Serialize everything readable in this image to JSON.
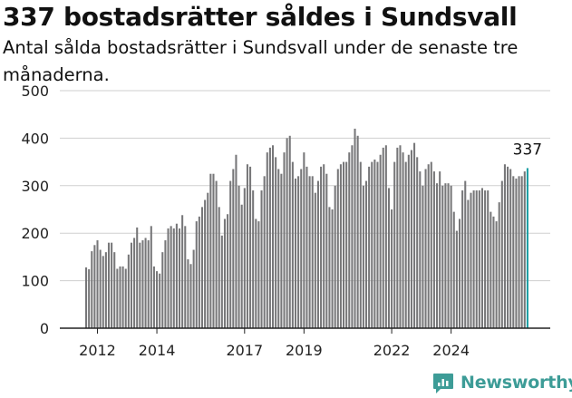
{
  "title": "337 bostadsrätter såldes i Sundsvall",
  "subtitle": "Antal sålda bostadsrätter i Sundsvall under de senaste tre månaderna.",
  "brand": {
    "name": "Newsworthy",
    "color": "#3d9c97",
    "icon": "newsworthy-logo-icon"
  },
  "colors": {
    "bar": "#777779",
    "highlight": "#1b9ea3",
    "grid": "#cfcfcf",
    "axis": "#222222"
  },
  "chart_data": {
    "type": "bar",
    "title": "337 bostadsrätter såldes i Sundsvall",
    "subtitle": "Antal sålda bostadsrätter i Sundsvall under de senaste tre månaderna.",
    "xlabel": "",
    "ylabel": "",
    "ylim": [
      0,
      500
    ],
    "yticks": [
      0,
      100,
      200,
      300,
      400,
      500
    ],
    "xticks": [
      "2012",
      "2014",
      "2017",
      "2019",
      "2022",
      "2024"
    ],
    "xtick_positions": [
      4,
      25,
      56,
      77,
      108,
      129
    ],
    "grid": true,
    "legend": "none",
    "end_label": "337",
    "highlight_last": true,
    "series": [
      {
        "values": [
          128,
          124,
          162,
          175,
          185,
          165,
          152,
          160,
          180,
          180,
          160,
          125,
          130,
          130,
          125,
          155,
          180,
          190,
          212,
          180,
          185,
          190,
          185,
          215,
          130,
          120,
          115,
          160,
          185,
          210,
          215,
          210,
          220,
          210,
          238,
          215,
          145,
          135,
          165,
          225,
          235,
          255,
          270,
          285,
          325,
          325,
          310,
          255,
          195,
          230,
          240,
          310,
          335,
          365,
          300,
          260,
          295,
          345,
          340,
          290,
          230,
          225,
          290,
          320,
          370,
          380,
          385,
          360,
          335,
          325,
          370,
          400,
          405,
          350,
          315,
          320,
          335,
          370,
          340,
          320,
          320,
          285,
          310,
          340,
          345,
          325,
          255,
          250,
          300,
          335,
          345,
          350,
          350,
          370,
          385,
          420,
          405,
          350,
          300,
          310,
          340,
          350,
          355,
          350,
          365,
          380,
          385,
          295,
          250,
          350,
          380,
          385,
          370,
          350,
          365,
          375,
          390,
          360,
          330,
          300,
          335,
          345,
          350,
          330,
          305,
          330,
          300,
          305,
          305,
          300,
          245,
          205,
          230,
          290,
          310,
          270,
          285,
          290,
          290,
          290,
          295,
          290,
          290,
          245,
          235,
          225,
          265,
          310,
          345,
          340,
          335,
          320,
          315,
          320,
          320,
          330,
          337
        ]
      }
    ]
  }
}
